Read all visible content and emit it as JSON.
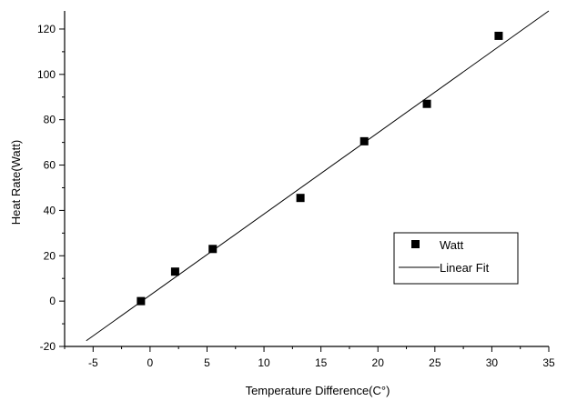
{
  "chart_data": {
    "type": "scatter",
    "title": "",
    "xlabel": "Temperature Difference(C°)",
    "ylabel": "Heat Rate(Watt)",
    "xlim": [
      -7.5,
      35
    ],
    "ylim": [
      -20,
      128
    ],
    "x_ticks": [
      -5,
      0,
      5,
      10,
      15,
      20,
      25,
      30,
      35
    ],
    "y_ticks": [
      -20,
      0,
      20,
      40,
      60,
      80,
      100,
      120
    ],
    "grid": false,
    "legend_position": "lower-right",
    "series": [
      {
        "name": "Watt",
        "kind": "scatter",
        "marker": "square",
        "color": "#000000",
        "x": [
          -0.8,
          2.2,
          5.5,
          13.2,
          18.8,
          24.3,
          30.6
        ],
        "y": [
          0,
          13,
          23,
          45.5,
          70.5,
          87,
          117
        ]
      },
      {
        "name": "Linear Fit",
        "kind": "line",
        "color": "#000000",
        "x": [
          -5.6,
          35
        ],
        "y": [
          -17.5,
          128
        ]
      }
    ]
  }
}
